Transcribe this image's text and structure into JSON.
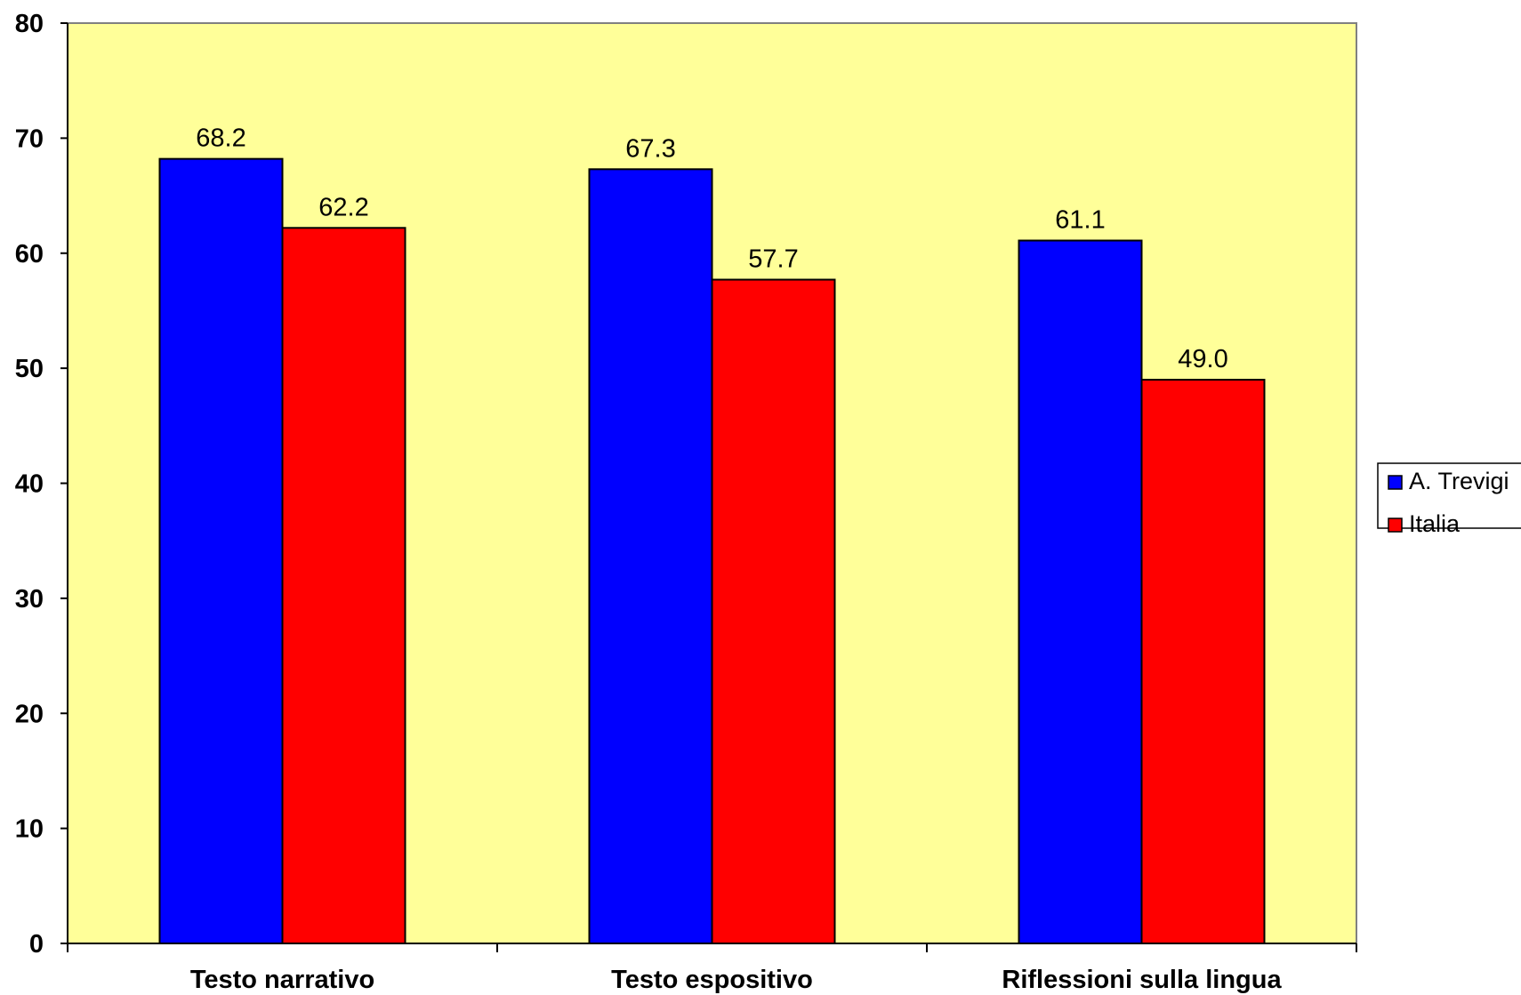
{
  "chart_data": {
    "type": "bar",
    "title": "",
    "xlabel": "",
    "ylabel": "",
    "categories": [
      "Testo narrativo",
      "Testo espositivo",
      "Riflessioni sulla lingua"
    ],
    "series": [
      {
        "name": "A. Trevigi",
        "color": "#0000ff",
        "values": [
          68.2,
          67.3,
          61.1
        ],
        "labels": [
          "68.2",
          "67.3",
          "61.1"
        ]
      },
      {
        "name": "Italia",
        "color": "#ff0000",
        "values": [
          62.2,
          57.7,
          49.0
        ],
        "labels": [
          "62.2",
          "57.7",
          "49.0"
        ]
      }
    ],
    "ylim": [
      0,
      80
    ],
    "yticks": [
      0,
      10,
      20,
      30,
      40,
      50,
      60,
      70,
      80
    ],
    "plot_background": "#ffff99",
    "grid": false,
    "legend_position": "right"
  }
}
